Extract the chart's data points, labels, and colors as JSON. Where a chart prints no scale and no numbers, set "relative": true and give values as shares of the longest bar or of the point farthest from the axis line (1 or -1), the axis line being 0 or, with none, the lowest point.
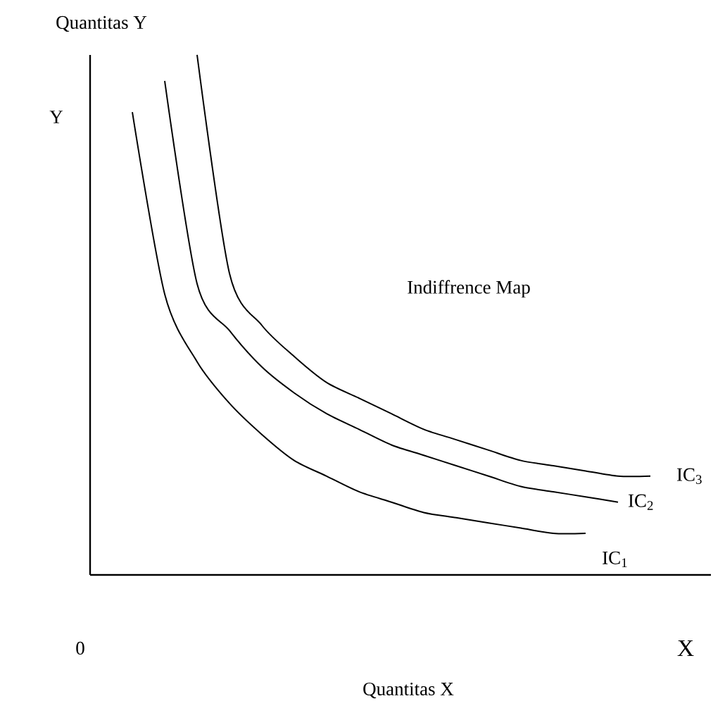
{
  "chart_data": {
    "type": "line",
    "relative": true,
    "title": "Indiffrence Map",
    "ylabel": "Quantitas Y",
    "annotations": [
      "Y",
      "0",
      "X",
      "Quantitas X"
    ],
    "categories": [
      null,
      null,
      null,
      null,
      null,
      null,
      null,
      null,
      null,
      null,
      null,
      null,
      null,
      null,
      null,
      null,
      null
    ],
    "marker": "none",
    "line_style": "solid",
    "series": [
      {
        "name": "IC$_{1}$",
        "color": "#000000",
        "values": [
          0.89,
          0.54,
          0.41,
          0.33,
          0.27,
          0.22,
          0.19,
          0.16,
          0.14,
          0.12,
          0.11,
          0.1,
          0.09,
          0.08,
          0.08,
          null,
          null
        ]
      },
      {
        "name": "IC$_{2}$",
        "color": "#000000",
        "values": [
          null,
          0.95,
          0.56,
          0.47,
          0.4,
          0.35,
          0.31,
          0.28,
          0.25,
          0.23,
          0.21,
          0.19,
          0.17,
          0.16,
          0.15,
          0.14,
          null
        ]
      },
      {
        "name": "IC$_{3}$",
        "color": "#000000",
        "values": [
          null,
          null,
          1,
          0.58,
          0.48,
          0.42,
          0.37,
          0.34,
          0.31,
          0.28,
          0.26,
          0.24,
          0.22,
          0.21,
          0.2,
          0.19,
          0.19
        ]
      }
    ]
  }
}
